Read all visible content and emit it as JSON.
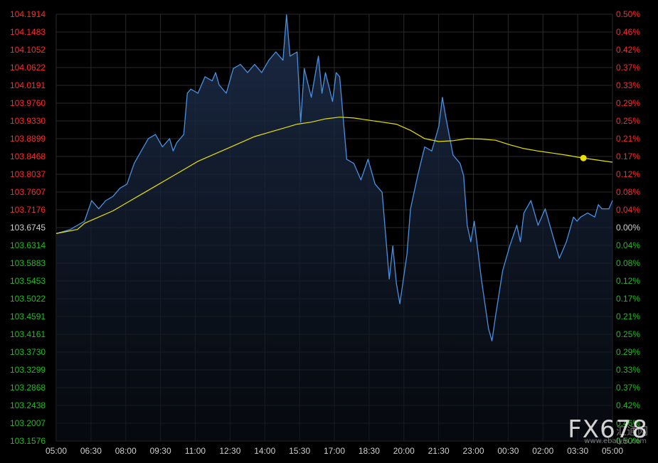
{
  "chart_data": {
    "type": "line",
    "title": "",
    "base_price": 103.6745,
    "y_left_ticks": [
      "104.1914",
      "104.1483",
      "104.1052",
      "104.0622",
      "104.0191",
      "103.9760",
      "103.9330",
      "103.8899",
      "103.8468",
      "103.8037",
      "103.7607",
      "103.7176",
      "103.6745",
      "103.6314",
      "103.5883",
      "103.5453",
      "103.5022",
      "103.4591",
      "103.4161",
      "103.3730",
      "103.3299",
      "103.2868",
      "103.2438",
      "103.2007",
      "103.1576"
    ],
    "y_right_ticks": [
      "0.50%",
      "0.46%",
      "0.42%",
      "0.37%",
      "0.33%",
      "0.29%",
      "0.25%",
      "0.21%",
      "0.17%",
      "0.12%",
      "0.08%",
      "0.04%",
      "0.00%",
      "0.04%",
      "0.08%",
      "0.12%",
      "0.17%",
      "0.21%",
      "0.25%",
      "0.29%",
      "0.33%",
      "0.37%",
      "0.42%",
      "0.46%",
      "0.50%"
    ],
    "x_ticks": [
      "05:00",
      "06:30",
      "08:00",
      "09:30",
      "11:00",
      "12:30",
      "14:00",
      "15:30",
      "17:00",
      "18:30",
      "20:00",
      "21:30",
      "23:00",
      "00:30",
      "02:00",
      "03:30",
      "05:00"
    ],
    "ylim": [
      103.1576,
      104.1914
    ],
    "grid": true,
    "colors": {
      "price": "#4a90e2",
      "average": "#e8e000",
      "up": "#ff2a2a",
      "down": "#22bb22",
      "neutral": "#cfcfcf",
      "grid": "#2a2a2a",
      "fill_top": "#1c2c48"
    },
    "series": [
      {
        "role": "price",
        "points": [
          [
            0,
            103.66
          ],
          [
            20,
            103.67
          ],
          [
            40,
            103.69
          ],
          [
            50,
            103.74
          ],
          [
            60,
            103.72
          ],
          [
            70,
            103.74
          ],
          [
            80,
            103.75
          ],
          [
            90,
            103.77
          ],
          [
            100,
            103.78
          ],
          [
            110,
            103.83
          ],
          [
            120,
            103.86
          ],
          [
            130,
            103.89
          ],
          [
            140,
            103.9
          ],
          [
            150,
            103.87
          ],
          [
            160,
            103.89
          ],
          [
            165,
            103.86
          ],
          [
            170,
            103.88
          ],
          [
            180,
            103.9
          ],
          [
            185,
            104.0
          ],
          [
            190,
            104.01
          ],
          [
            200,
            104.0
          ],
          [
            210,
            104.04
          ],
          [
            220,
            104.03
          ],
          [
            225,
            104.05
          ],
          [
            230,
            104.02
          ],
          [
            240,
            104.0
          ],
          [
            250,
            104.06
          ],
          [
            260,
            104.07
          ],
          [
            270,
            104.05
          ],
          [
            280,
            104.07
          ],
          [
            290,
            104.05
          ],
          [
            300,
            104.08
          ],
          [
            310,
            104.1
          ],
          [
            320,
            104.08
          ],
          [
            325,
            104.19
          ],
          [
            330,
            104.09
          ],
          [
            340,
            104.1
          ],
          [
            345,
            103.93
          ],
          [
            350,
            104.06
          ],
          [
            360,
            103.99
          ],
          [
            370,
            104.09
          ],
          [
            375,
            104.0
          ],
          [
            380,
            104.05
          ],
          [
            390,
            103.98
          ],
          [
            395,
            104.05
          ],
          [
            400,
            104.04
          ],
          [
            410,
            103.84
          ],
          [
            420,
            103.83
          ],
          [
            430,
            103.79
          ],
          [
            440,
            103.84
          ],
          [
            450,
            103.78
          ],
          [
            460,
            103.76
          ],
          [
            470,
            103.55
          ],
          [
            475,
            103.63
          ],
          [
            480,
            103.54
          ],
          [
            485,
            103.49
          ],
          [
            490,
            103.55
          ],
          [
            495,
            103.61
          ],
          [
            500,
            103.72
          ],
          [
            510,
            103.8
          ],
          [
            520,
            103.87
          ],
          [
            530,
            103.86
          ],
          [
            540,
            103.92
          ],
          [
            545,
            103.99
          ],
          [
            550,
            103.94
          ],
          [
            560,
            103.85
          ],
          [
            570,
            103.83
          ],
          [
            575,
            103.8
          ],
          [
            580,
            103.68
          ],
          [
            585,
            103.64
          ],
          [
            590,
            103.69
          ],
          [
            600,
            103.55
          ],
          [
            610,
            103.43
          ],
          [
            615,
            103.4
          ],
          [
            620,
            103.46
          ],
          [
            630,
            103.57
          ],
          [
            640,
            103.63
          ],
          [
            650,
            103.68
          ],
          [
            655,
            103.64
          ],
          [
            660,
            103.71
          ],
          [
            670,
            103.74
          ],
          [
            680,
            103.68
          ],
          [
            690,
            103.72
          ],
          [
            700,
            103.66
          ],
          [
            710,
            103.6
          ],
          [
            720,
            103.64
          ],
          [
            730,
            103.7
          ],
          [
            735,
            103.69
          ],
          [
            740,
            103.7
          ],
          [
            750,
            103.71
          ],
          [
            760,
            103.7
          ],
          [
            765,
            103.73
          ],
          [
            770,
            103.72
          ],
          [
            780,
            103.72
          ],
          [
            785,
            103.74
          ]
        ]
      },
      {
        "role": "average",
        "points": [
          [
            0,
            103.66
          ],
          [
            30,
            103.67
          ],
          [
            40,
            103.685
          ],
          [
            60,
            103.7
          ],
          [
            80,
            103.715
          ],
          [
            100,
            103.735
          ],
          [
            120,
            103.755
          ],
          [
            140,
            103.775
          ],
          [
            160,
            103.795
          ],
          [
            180,
            103.815
          ],
          [
            200,
            103.835
          ],
          [
            220,
            103.85
          ],
          [
            240,
            103.865
          ],
          [
            260,
            103.88
          ],
          [
            280,
            103.895
          ],
          [
            300,
            103.905
          ],
          [
            320,
            103.915
          ],
          [
            340,
            103.925
          ],
          [
            360,
            103.93
          ],
          [
            380,
            103.938
          ],
          [
            400,
            103.942
          ],
          [
            420,
            103.94
          ],
          [
            440,
            103.935
          ],
          [
            460,
            103.93
          ],
          [
            480,
            103.925
          ],
          [
            500,
            103.91
          ],
          [
            520,
            103.89
          ],
          [
            540,
            103.883
          ],
          [
            560,
            103.885
          ],
          [
            580,
            103.89
          ],
          [
            600,
            103.889
          ],
          [
            620,
            103.886
          ],
          [
            640,
            103.875
          ],
          [
            660,
            103.866
          ],
          [
            680,
            103.86
          ],
          [
            700,
            103.855
          ],
          [
            720,
            103.85
          ],
          [
            740,
            103.844
          ],
          [
            760,
            103.839
          ],
          [
            780,
            103.834
          ],
          [
            785,
            103.833
          ]
        ]
      }
    ],
    "marker": {
      "series": "average",
      "x": 744,
      "y": 103.843
    }
  },
  "watermark": {
    "brand": "FX678",
    "cn": "汇通网",
    "url": "www.ebaiyin.com"
  }
}
